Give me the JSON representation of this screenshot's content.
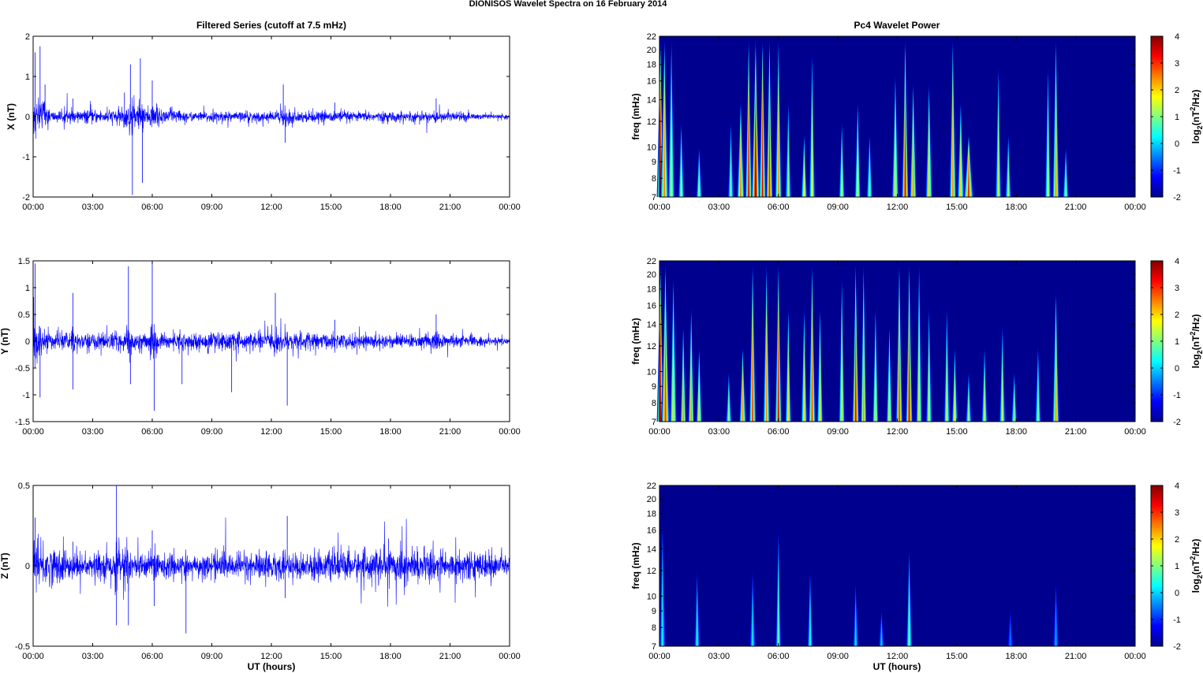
{
  "figure": {
    "title": "DIONISOS Wavelet Spectra on 16 February  2014"
  },
  "time_ticks": [
    "00:00",
    "03:00",
    "06:00",
    "09:00",
    "12:00",
    "15:00",
    "18:00",
    "21:00",
    "00:00"
  ],
  "colorbar": {
    "ticks": [
      "4",
      "3",
      "2",
      "1",
      "0",
      "-1",
      "-2"
    ],
    "label_prefix": "log",
    "label_sub": "2",
    "label_mid": "(nT",
    "label_sup": "2",
    "label_suffix": "/Hz)",
    "range": [
      -2,
      4
    ],
    "colormap": "jet"
  },
  "chart_data": [
    {
      "type": "line",
      "panel": "x-series",
      "title": "Filtered Series (cutoff at 7.5 mHz)",
      "xlabel": "",
      "ylabel": "X (nT)",
      "ylim": [
        -2,
        2
      ],
      "yticks": [
        "2",
        "1",
        "0",
        "-1",
        "-2"
      ],
      "xlim_hours": [
        0,
        24
      ],
      "color": "#0000ff",
      "bursts": [
        {
          "t": 0.1,
          "amp": 1.6
        },
        {
          "t": 0.35,
          "amp": 1.75
        },
        {
          "t": 0.6,
          "amp": 0.8
        },
        {
          "t": 2.0,
          "amp": 0.45
        },
        {
          "t": 4.6,
          "amp": 0.6
        },
        {
          "t": 4.9,
          "amp": 1.3
        },
        {
          "t": 5.0,
          "amp": -1.95
        },
        {
          "t": 5.4,
          "amp": 1.45
        },
        {
          "t": 5.5,
          "amp": -1.65
        },
        {
          "t": 6.0,
          "amp": 0.9
        },
        {
          "t": 12.6,
          "amp": 0.8
        },
        {
          "t": 12.7,
          "amp": -0.65
        },
        {
          "t": 15.2,
          "amp": 0.35
        },
        {
          "t": 20.3,
          "amp": 0.45
        }
      ],
      "noise_profile": [
        [
          0,
          0.35
        ],
        [
          1,
          0.12
        ],
        [
          4,
          0.15
        ],
        [
          6,
          0.2
        ],
        [
          8,
          0.1
        ],
        [
          11,
          0.1
        ],
        [
          13,
          0.12
        ],
        [
          16,
          0.1
        ],
        [
          21,
          0.1
        ],
        [
          24,
          0.03
        ]
      ]
    },
    {
      "type": "line",
      "panel": "y-series",
      "title": "",
      "xlabel": "",
      "ylabel": "Y (nT)",
      "ylim": [
        -1.5,
        1.5
      ],
      "yticks": [
        "1.5",
        "1",
        "0.5",
        "0",
        "-0.5",
        "-1",
        "-1.5"
      ],
      "xlim_hours": [
        0,
        24
      ],
      "color": "#0000ff",
      "bursts": [
        {
          "t": 0.1,
          "amp": 1.45
        },
        {
          "t": 0.35,
          "amp": -1.05
        },
        {
          "t": 2.0,
          "amp": 0.9
        },
        {
          "t": 2.0,
          "amp": -0.9
        },
        {
          "t": 4.8,
          "amp": 1.4
        },
        {
          "t": 4.9,
          "amp": -0.8
        },
        {
          "t": 6.0,
          "amp": 1.45
        },
        {
          "t": 6.1,
          "amp": -1.3
        },
        {
          "t": 7.5,
          "amp": -0.8
        },
        {
          "t": 10.0,
          "amp": -0.95
        },
        {
          "t": 12.2,
          "amp": 0.9
        },
        {
          "t": 12.8,
          "amp": -1.2
        },
        {
          "t": 15.2,
          "amp": 0.4
        },
        {
          "t": 20.3,
          "amp": 0.5
        }
      ],
      "noise_profile": [
        [
          0,
          0.35
        ],
        [
          1,
          0.12
        ],
        [
          4,
          0.14
        ],
        [
          8,
          0.12
        ],
        [
          13,
          0.13
        ],
        [
          16,
          0.12
        ],
        [
          21,
          0.1
        ],
        [
          24,
          0.05
        ]
      ]
    },
    {
      "type": "line",
      "panel": "z-series",
      "title": "",
      "xlabel": "UT (hours)",
      "ylabel": "Z (nT)",
      "ylim": [
        -0.5,
        0.5
      ],
      "yticks": [
        "0.5",
        "0",
        "-0.5"
      ],
      "xlim_hours": [
        0,
        24
      ],
      "color": "#0000ff",
      "bursts": [
        {
          "t": 0.1,
          "amp": 0.3
        },
        {
          "t": 2.0,
          "amp": 0.15
        },
        {
          "t": 4.2,
          "amp": 0.5
        },
        {
          "t": 4.2,
          "amp": -0.37
        },
        {
          "t": 4.8,
          "amp": -0.37
        },
        {
          "t": 6.1,
          "amp": -0.25
        },
        {
          "t": 6.0,
          "amp": 0.22
        },
        {
          "t": 7.7,
          "amp": -0.42
        },
        {
          "t": 12.8,
          "amp": 0.31
        },
        {
          "t": 12.7,
          "amp": -0.2
        },
        {
          "t": 17.9,
          "amp": 0.17
        }
      ],
      "noise_profile": [
        [
          0,
          0.13
        ],
        [
          2,
          0.07
        ],
        [
          8,
          0.06
        ],
        [
          11,
          0.07
        ],
        [
          15,
          0.07
        ],
        [
          18,
          0.09
        ],
        [
          21,
          0.08
        ],
        [
          24,
          0.06
        ]
      ]
    },
    {
      "type": "heatmap",
      "panel": "x-power",
      "title": "Pc4 Wavelet Power",
      "xlabel": "",
      "ylabel": "freq (mHz)",
      "yticks": [
        "22",
        "20",
        "18",
        "16",
        "14",
        "12",
        "10",
        "9",
        "8",
        "7"
      ],
      "ylim_mhz": [
        7,
        22
      ],
      "yscale": "log",
      "xlim_hours": [
        0,
        24
      ],
      "events": [
        {
          "t": 0.05,
          "w": 0.15,
          "pow": 3.5,
          "top": 22
        },
        {
          "t": 0.25,
          "w": 0.2,
          "pow": 2.5,
          "top": 22
        },
        {
          "t": 0.6,
          "w": 0.15,
          "pow": 1.5,
          "top": 22
        },
        {
          "t": 1.1,
          "w": 0.12,
          "pow": 1.3,
          "top": 12
        },
        {
          "t": 2.0,
          "w": 0.12,
          "pow": 1.2,
          "top": 10
        },
        {
          "t": 3.6,
          "w": 0.12,
          "pow": 1.0,
          "top": 12
        },
        {
          "t": 4.1,
          "w": 0.18,
          "pow": 2.5,
          "top": 14
        },
        {
          "t": 4.5,
          "w": 0.15,
          "pow": 3.5,
          "top": 22
        },
        {
          "t": 4.85,
          "w": 0.2,
          "pow": 4.0,
          "top": 22
        },
        {
          "t": 5.2,
          "w": 0.15,
          "pow": 3.5,
          "top": 22
        },
        {
          "t": 5.55,
          "w": 0.15,
          "pow": 3.2,
          "top": 22
        },
        {
          "t": 6.0,
          "w": 0.15,
          "pow": 2.5,
          "top": 22
        },
        {
          "t": 6.5,
          "w": 0.12,
          "pow": 1.2,
          "top": 14
        },
        {
          "t": 7.3,
          "w": 0.12,
          "pow": 1.8,
          "top": 11
        },
        {
          "t": 7.7,
          "w": 0.12,
          "pow": 1.8,
          "top": 20
        },
        {
          "t": 9.2,
          "w": 0.12,
          "pow": 1.5,
          "top": 12
        },
        {
          "t": 10.0,
          "w": 0.12,
          "pow": 1.8,
          "top": 14
        },
        {
          "t": 10.6,
          "w": 0.12,
          "pow": 1.2,
          "top": 11
        },
        {
          "t": 11.9,
          "w": 0.15,
          "pow": 2.0,
          "top": 17
        },
        {
          "t": 12.4,
          "w": 0.15,
          "pow": 3.5,
          "top": 22
        },
        {
          "t": 12.8,
          "w": 0.15,
          "pow": 2.5,
          "top": 16
        },
        {
          "t": 13.6,
          "w": 0.15,
          "pow": 2.0,
          "top": 16
        },
        {
          "t": 14.8,
          "w": 0.15,
          "pow": 2.5,
          "top": 22
        },
        {
          "t": 15.2,
          "w": 0.15,
          "pow": 2.0,
          "top": 14
        },
        {
          "t": 15.6,
          "w": 0.25,
          "pow": 3.0,
          "top": 11
        },
        {
          "t": 17.1,
          "w": 0.12,
          "pow": 1.5,
          "top": 18
        },
        {
          "t": 17.6,
          "w": 0.12,
          "pow": 1.2,
          "top": 11
        },
        {
          "t": 19.6,
          "w": 0.12,
          "pow": 1.5,
          "top": 18
        },
        {
          "t": 20.0,
          "w": 0.15,
          "pow": 2.5,
          "top": 22
        },
        {
          "t": 20.5,
          "w": 0.12,
          "pow": 1.2,
          "top": 10
        }
      ]
    },
    {
      "type": "heatmap",
      "panel": "y-power",
      "title": "",
      "xlabel": "",
      "ylabel": "freq (mHz)",
      "yticks": [
        "22",
        "20",
        "18",
        "16",
        "14",
        "12",
        "10",
        "9",
        "8",
        "7"
      ],
      "ylim_mhz": [
        7,
        22
      ],
      "yscale": "log",
      "xlim_hours": [
        0,
        24
      ],
      "events": [
        {
          "t": 0.05,
          "w": 0.15,
          "pow": 3.5,
          "top": 22
        },
        {
          "t": 0.3,
          "w": 0.2,
          "pow": 3.0,
          "top": 22
        },
        {
          "t": 0.7,
          "w": 0.15,
          "pow": 2.0,
          "top": 20
        },
        {
          "t": 1.2,
          "w": 0.12,
          "pow": 2.5,
          "top": 14
        },
        {
          "t": 1.6,
          "w": 0.12,
          "pow": 2.5,
          "top": 16
        },
        {
          "t": 2.0,
          "w": 0.12,
          "pow": 2.0,
          "top": 12
        },
        {
          "t": 3.5,
          "w": 0.12,
          "pow": 1.2,
          "top": 10
        },
        {
          "t": 4.2,
          "w": 0.15,
          "pow": 2.5,
          "top": 12
        },
        {
          "t": 4.7,
          "w": 0.15,
          "pow": 3.0,
          "top": 22
        },
        {
          "t": 5.4,
          "w": 0.15,
          "pow": 2.5,
          "top": 22
        },
        {
          "t": 6.0,
          "w": 0.15,
          "pow": 3.5,
          "top": 22
        },
        {
          "t": 6.5,
          "w": 0.12,
          "pow": 2.0,
          "top": 16
        },
        {
          "t": 7.3,
          "w": 0.12,
          "pow": 2.0,
          "top": 16
        },
        {
          "t": 7.7,
          "w": 0.15,
          "pow": 3.0,
          "top": 22
        },
        {
          "t": 8.1,
          "w": 0.12,
          "pow": 2.0,
          "top": 16
        },
        {
          "t": 9.2,
          "w": 0.12,
          "pow": 2.0,
          "top": 20
        },
        {
          "t": 9.9,
          "w": 0.15,
          "pow": 3.5,
          "top": 22
        },
        {
          "t": 10.3,
          "w": 0.12,
          "pow": 2.5,
          "top": 22
        },
        {
          "t": 10.9,
          "w": 0.12,
          "pow": 2.0,
          "top": 16
        },
        {
          "t": 11.6,
          "w": 0.12,
          "pow": 2.0,
          "top": 14
        },
        {
          "t": 12.1,
          "w": 0.15,
          "pow": 3.0,
          "top": 22
        },
        {
          "t": 12.6,
          "w": 0.15,
          "pow": 3.5,
          "top": 22
        },
        {
          "t": 13.1,
          "w": 0.12,
          "pow": 2.0,
          "top": 22
        },
        {
          "t": 13.6,
          "w": 0.12,
          "pow": 1.5,
          "top": 16
        },
        {
          "t": 14.5,
          "w": 0.12,
          "pow": 1.5,
          "top": 16
        },
        {
          "t": 14.9,
          "w": 0.12,
          "pow": 1.8,
          "top": 12
        },
        {
          "t": 15.6,
          "w": 0.12,
          "pow": 1.2,
          "top": 10
        },
        {
          "t": 16.4,
          "w": 0.12,
          "pow": 1.5,
          "top": 12
        },
        {
          "t": 17.3,
          "w": 0.12,
          "pow": 1.5,
          "top": 14
        },
        {
          "t": 17.9,
          "w": 0.12,
          "pow": 1.2,
          "top": 10
        },
        {
          "t": 19.1,
          "w": 0.12,
          "pow": 1.2,
          "top": 12
        },
        {
          "t": 20.0,
          "w": 0.15,
          "pow": 2.5,
          "top": 18
        }
      ]
    },
    {
      "type": "heatmap",
      "panel": "z-power",
      "title": "",
      "xlabel": "UT (hours)",
      "ylabel": "freq (mHz)",
      "yticks": [
        "22",
        "20",
        "18",
        "16",
        "14",
        "12",
        "10",
        "9",
        "8",
        "7"
      ],
      "ylim_mhz": [
        7,
        22
      ],
      "yscale": "log",
      "xlim_hours": [
        0,
        24
      ],
      "events": [
        {
          "t": 0.15,
          "w": 0.12,
          "pow": 0.3,
          "top": 17
        },
        {
          "t": 1.9,
          "w": 0.1,
          "pow": 0.5,
          "top": 12
        },
        {
          "t": 4.7,
          "w": 0.1,
          "pow": 0.3,
          "top": 12
        },
        {
          "t": 6.0,
          "w": 0.1,
          "pow": 1.0,
          "top": 16
        },
        {
          "t": 7.6,
          "w": 0.1,
          "pow": 0.6,
          "top": 12
        },
        {
          "t": 9.9,
          "w": 0.1,
          "pow": 0.2,
          "top": 11
        },
        {
          "t": 11.2,
          "w": 0.1,
          "pow": 0.0,
          "top": 9
        },
        {
          "t": 12.6,
          "w": 0.12,
          "pow": 1.0,
          "top": 14
        },
        {
          "t": 17.7,
          "w": 0.1,
          "pow": -0.5,
          "top": 9
        },
        {
          "t": 20.0,
          "w": 0.1,
          "pow": -0.2,
          "top": 11
        }
      ]
    }
  ]
}
